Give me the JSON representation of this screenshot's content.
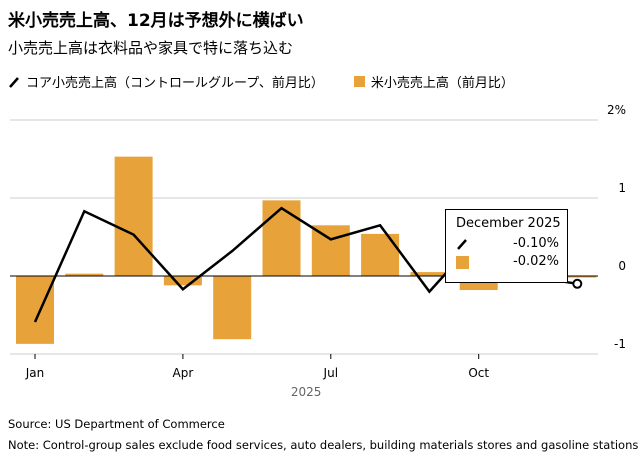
{
  "title": "米小売売上高、12月は予想外に横ばい",
  "subtitle": "小売売上高は衣料品や家具で特に落ち込む",
  "chart_data": {
    "type": "bar",
    "categories": [
      "Jan",
      "Feb",
      "Mar",
      "Apr",
      "May",
      "Jun",
      "Jul",
      "Aug",
      "Sep",
      "Oct",
      "Nov",
      "Dec"
    ],
    "x_tick_labels": [
      "Jan",
      "Apr",
      "Jul",
      "Oct"
    ],
    "x_year_label": "2025",
    "y_ticks": [
      {
        "v": 2,
        "label": "2%"
      },
      {
        "v": 1,
        "label": "1"
      },
      {
        "v": 0,
        "label": "0"
      },
      {
        "v": -1,
        "label": "-1"
      }
    ],
    "ylim": [
      -1,
      2
    ],
    "grid": true,
    "series": [
      {
        "name": "米小売売上高（前月比）",
        "type": "bar",
        "color": "#e8a23a",
        "values": [
          -0.87,
          0.03,
          1.53,
          -0.12,
          -0.81,
          0.97,
          0.65,
          0.54,
          0.05,
          -0.18,
          0.0,
          -0.02
        ]
      },
      {
        "name": "コア小売売上高（コントロールグループ、前月比）",
        "type": "line",
        "color": "#000000",
        "values": [
          -0.59,
          0.83,
          0.53,
          -0.17,
          0.32,
          0.87,
          0.47,
          0.65,
          -0.2,
          0.5,
          0.0,
          -0.1
        ]
      }
    ],
    "tooltip": {
      "title": "December 2025",
      "line_value": "-0.10%",
      "bar_value": "-0.02%"
    }
  },
  "footer": {
    "source": "Source: US Department of Commerce",
    "note": "Note: Control-group sales exclude food services, auto dealers, building materials stores and gasoline stations"
  }
}
